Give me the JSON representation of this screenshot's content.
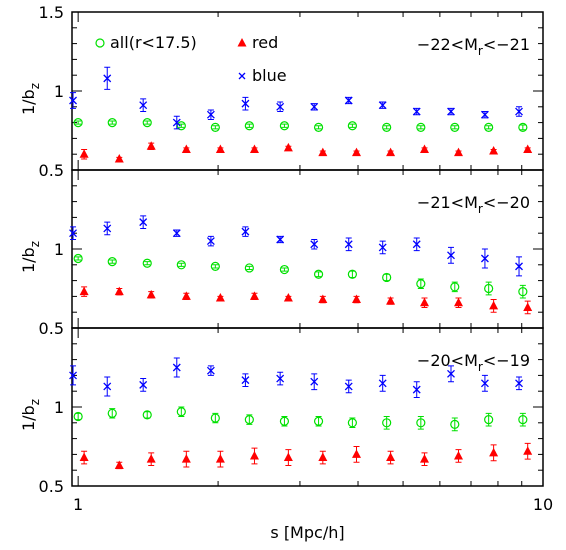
{
  "chart_data": [
    {
      "type": "scatter",
      "label": {
        "pre": "−22<M",
        "sub": "r",
        "post": "<−21"
      },
      "ylabel": {
        "pre": "1/b",
        "sub": "z"
      },
      "ylim": [
        0.5,
        1.5
      ],
      "yticks": [
        0.5,
        1,
        1.5
      ],
      "yminor": [
        0.6,
        0.7,
        0.8,
        0.9,
        1.1,
        1.2,
        1.3,
        1.4
      ],
      "series": [
        {
          "name": "all(r<17.5)",
          "color": "#00e000",
          "marker": "circle",
          "x": [
            1.0,
            1.184,
            1.408,
            1.667,
            1.973,
            2.335,
            2.778,
            3.29,
            3.89,
            4.61,
            5.46,
            6.46,
            7.64,
            9.05
          ],
          "values": [
            0.8,
            0.8,
            0.8,
            0.78,
            0.77,
            0.78,
            0.78,
            0.77,
            0.78,
            0.77,
            0.77,
            0.77,
            0.77,
            0.77
          ],
          "errors": [
            0.01,
            0.01,
            0.01,
            0.01,
            0.01,
            0.01,
            0.01,
            0.01,
            0.01,
            0.01,
            0.01,
            0.01,
            0.01,
            0.015
          ]
        },
        {
          "name": "red",
          "color": "#ff0000",
          "marker": "triangle",
          "x": [
            1.03,
            1.226,
            1.436,
            1.709,
            2.023,
            2.395,
            2.833,
            3.36,
            3.97,
            4.7,
            5.56,
            6.58,
            7.83,
            9.27
          ],
          "values": [
            0.6,
            0.57,
            0.65,
            0.63,
            0.63,
            0.63,
            0.64,
            0.61,
            0.61,
            0.61,
            0.63,
            0.61,
            0.62,
            0.63
          ],
          "errors": [
            0.03,
            0.01,
            0.02,
            0.01,
            0.01,
            0.01,
            0.01,
            0.01,
            0.01,
            0.01,
            0.01,
            0.01,
            0.01,
            0.01
          ]
        },
        {
          "name": "blue",
          "color": "#0000ff",
          "marker": "x",
          "x": [
            0.975,
            1.155,
            1.38,
            1.63,
            1.93,
            2.29,
            2.72,
            3.22,
            3.82,
            4.52,
            5.35,
            6.34,
            7.5,
            8.88
          ],
          "values": [
            0.94,
            1.08,
            0.91,
            0.8,
            0.85,
            0.92,
            0.9,
            0.9,
            0.94,
            0.91,
            0.87,
            0.87,
            0.85,
            0.87
          ],
          "errors": [
            0.05,
            0.07,
            0.04,
            0.04,
            0.03,
            0.04,
            0.03,
            0.02,
            0.02,
            0.02,
            0.02,
            0.02,
            0.02,
            0.03
          ]
        }
      ]
    },
    {
      "type": "scatter",
      "label": {
        "pre": "−21<M",
        "sub": "r",
        "post": "<−20"
      },
      "ylabel": {
        "pre": "1/b",
        "sub": "z"
      },
      "ylim": [
        0.5,
        1.5
      ],
      "yticks": [
        0.5,
        1
      ],
      "yminor": [
        0.6,
        0.7,
        0.8,
        0.9,
        1.1,
        1.2,
        1.3,
        1.4
      ],
      "series": [
        {
          "color": "#00e000",
          "marker": "circle",
          "x": [
            1.0,
            1.184,
            1.408,
            1.667,
            1.973,
            2.335,
            2.778,
            3.29,
            3.89,
            4.61,
            5.46,
            6.46,
            7.64,
            9.05
          ],
          "values": [
            0.94,
            0.92,
            0.91,
            0.9,
            0.89,
            0.88,
            0.87,
            0.84,
            0.84,
            0.82,
            0.78,
            0.76,
            0.75,
            0.73
          ],
          "errors": [
            0.01,
            0.01,
            0.01,
            0.01,
            0.01,
            0.01,
            0.01,
            0.015,
            0.02,
            0.02,
            0.03,
            0.03,
            0.04,
            0.04
          ]
        },
        {
          "color": "#ff0000",
          "marker": "triangle",
          "x": [
            1.03,
            1.226,
            1.436,
            1.709,
            2.023,
            2.395,
            2.833,
            3.36,
            3.97,
            4.7,
            5.56,
            6.58,
            7.83,
            9.27
          ],
          "values": [
            0.73,
            0.73,
            0.71,
            0.7,
            0.69,
            0.7,
            0.69,
            0.68,
            0.68,
            0.67,
            0.66,
            0.66,
            0.64,
            0.63
          ],
          "errors": [
            0.03,
            0.02,
            0.02,
            0.02,
            0.01,
            0.02,
            0.01,
            0.02,
            0.02,
            0.02,
            0.03,
            0.03,
            0.04,
            0.04
          ]
        },
        {
          "color": "#0000ff",
          "marker": "x",
          "x": [
            0.975,
            1.155,
            1.38,
            1.63,
            1.93,
            2.29,
            2.72,
            3.22,
            3.82,
            4.52,
            5.35,
            6.34,
            7.5,
            8.88
          ],
          "values": [
            1.1,
            1.13,
            1.17,
            1.1,
            1.05,
            1.11,
            1.06,
            1.03,
            1.03,
            1.01,
            1.03,
            0.96,
            0.94,
            0.89
          ],
          "errors": [
            0.04,
            0.04,
            0.04,
            0.02,
            0.03,
            0.03,
            0.02,
            0.03,
            0.04,
            0.04,
            0.04,
            0.05,
            0.06,
            0.06
          ]
        }
      ]
    },
    {
      "type": "scatter",
      "label": {
        "pre": "−20<M",
        "sub": "r",
        "post": "<−19"
      },
      "ylabel": {
        "pre": "1/b",
        "sub": "z"
      },
      "ylim": [
        0.5,
        1.5
      ],
      "yticks": [
        0.5,
        1
      ],
      "yminor": [
        0.6,
        0.7,
        0.8,
        0.9,
        1.1,
        1.2,
        1.3,
        1.4
      ],
      "series": [
        {
          "color": "#00e000",
          "marker": "circle",
          "x": [
            1.0,
            1.184,
            1.408,
            1.667,
            1.973,
            2.335,
            2.778,
            3.29,
            3.89,
            4.61,
            5.46,
            6.46,
            7.64,
            9.05
          ],
          "values": [
            0.94,
            0.96,
            0.95,
            0.97,
            0.93,
            0.92,
            0.91,
            0.91,
            0.9,
            0.9,
            0.9,
            0.89,
            0.92,
            0.92
          ],
          "errors": [
            0.02,
            0.03,
            0.02,
            0.03,
            0.03,
            0.03,
            0.03,
            0.03,
            0.03,
            0.04,
            0.04,
            0.04,
            0.04,
            0.04
          ]
        },
        {
          "color": "#ff0000",
          "marker": "triangle",
          "x": [
            1.03,
            1.226,
            1.436,
            1.709,
            2.023,
            2.395,
            2.833,
            3.36,
            3.97,
            4.7,
            5.56,
            6.58,
            7.83,
            9.27
          ],
          "values": [
            0.68,
            0.63,
            0.67,
            0.67,
            0.67,
            0.69,
            0.68,
            0.68,
            0.7,
            0.68,
            0.67,
            0.69,
            0.71,
            0.72
          ],
          "errors": [
            0.04,
            0.02,
            0.04,
            0.05,
            0.05,
            0.05,
            0.05,
            0.04,
            0.05,
            0.04,
            0.04,
            0.04,
            0.05,
            0.05
          ]
        },
        {
          "color": "#0000ff",
          "marker": "x",
          "x": [
            0.975,
            1.155,
            1.38,
            1.63,
            1.93,
            2.29,
            2.72,
            3.22,
            3.82,
            4.52,
            5.35,
            6.34,
            7.5,
            8.88
          ],
          "values": [
            1.2,
            1.13,
            1.14,
            1.25,
            1.23,
            1.17,
            1.18,
            1.16,
            1.13,
            1.15,
            1.11,
            1.21,
            1.15,
            1.15
          ],
          "errors": [
            0.06,
            0.06,
            0.04,
            0.06,
            0.03,
            0.04,
            0.04,
            0.05,
            0.04,
            0.05,
            0.05,
            0.05,
            0.05,
            0.04
          ]
        }
      ]
    }
  ],
  "x_axis": {
    "label": "s [Mpc/h]",
    "log": true,
    "lim": [
      0.97,
      10
    ],
    "ticks": [
      1,
      10
    ],
    "minor": [
      2,
      3,
      4,
      5,
      6,
      7,
      8,
      9
    ]
  }
}
